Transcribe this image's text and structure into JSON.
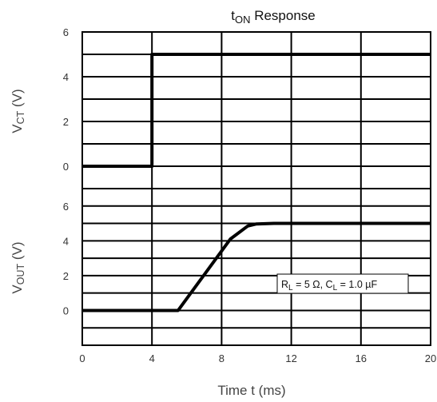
{
  "chart_data": {
    "type": "line",
    "title": "t",
    "title_sub": "ON",
    "title_rest": " Response",
    "xlabel": "Time  t (ms)",
    "xlim": [
      0,
      20
    ],
    "x_ticks": [
      "0",
      "4",
      "8",
      "12",
      "16",
      "20"
    ],
    "grid": true,
    "panels": [
      {
        "ylabel_main": "V",
        "ylabel_sub": "CT",
        "ylabel_rest": " (V)",
        "ylim": [
          -1,
          6
        ],
        "y_ticks": [
          "6",
          "4",
          "2",
          "0"
        ],
        "series": [
          {
            "x": [
              0,
              4,
              4,
              4.3,
              20
            ],
            "y": [
              0,
              0,
              5,
              5,
              5
            ]
          }
        ]
      },
      {
        "ylabel_main": "V",
        "ylabel_sub": "OUT",
        "ylabel_rest": " (V)",
        "ylim": [
          -2,
          7
        ],
        "y_ticks": [
          "6",
          "4",
          "2",
          "0"
        ],
        "series": [
          {
            "x": [
              0,
              5.5,
              8.5,
              9.5,
              10,
              11,
              20
            ],
            "y": [
              0,
              0,
              4.1,
              4.85,
              4.97,
              5,
              5
            ]
          }
        ]
      }
    ],
    "annotation": {
      "parts": [
        {
          "text": "R",
          "sub": false
        },
        {
          "text": "L",
          "sub": true
        },
        {
          "text": " = 5 Ω, C",
          "sub": false
        },
        {
          "text": "L",
          "sub": true
        },
        {
          "text": " = 1.0 µF",
          "sub": false
        }
      ]
    },
    "line_color": "#000000"
  }
}
